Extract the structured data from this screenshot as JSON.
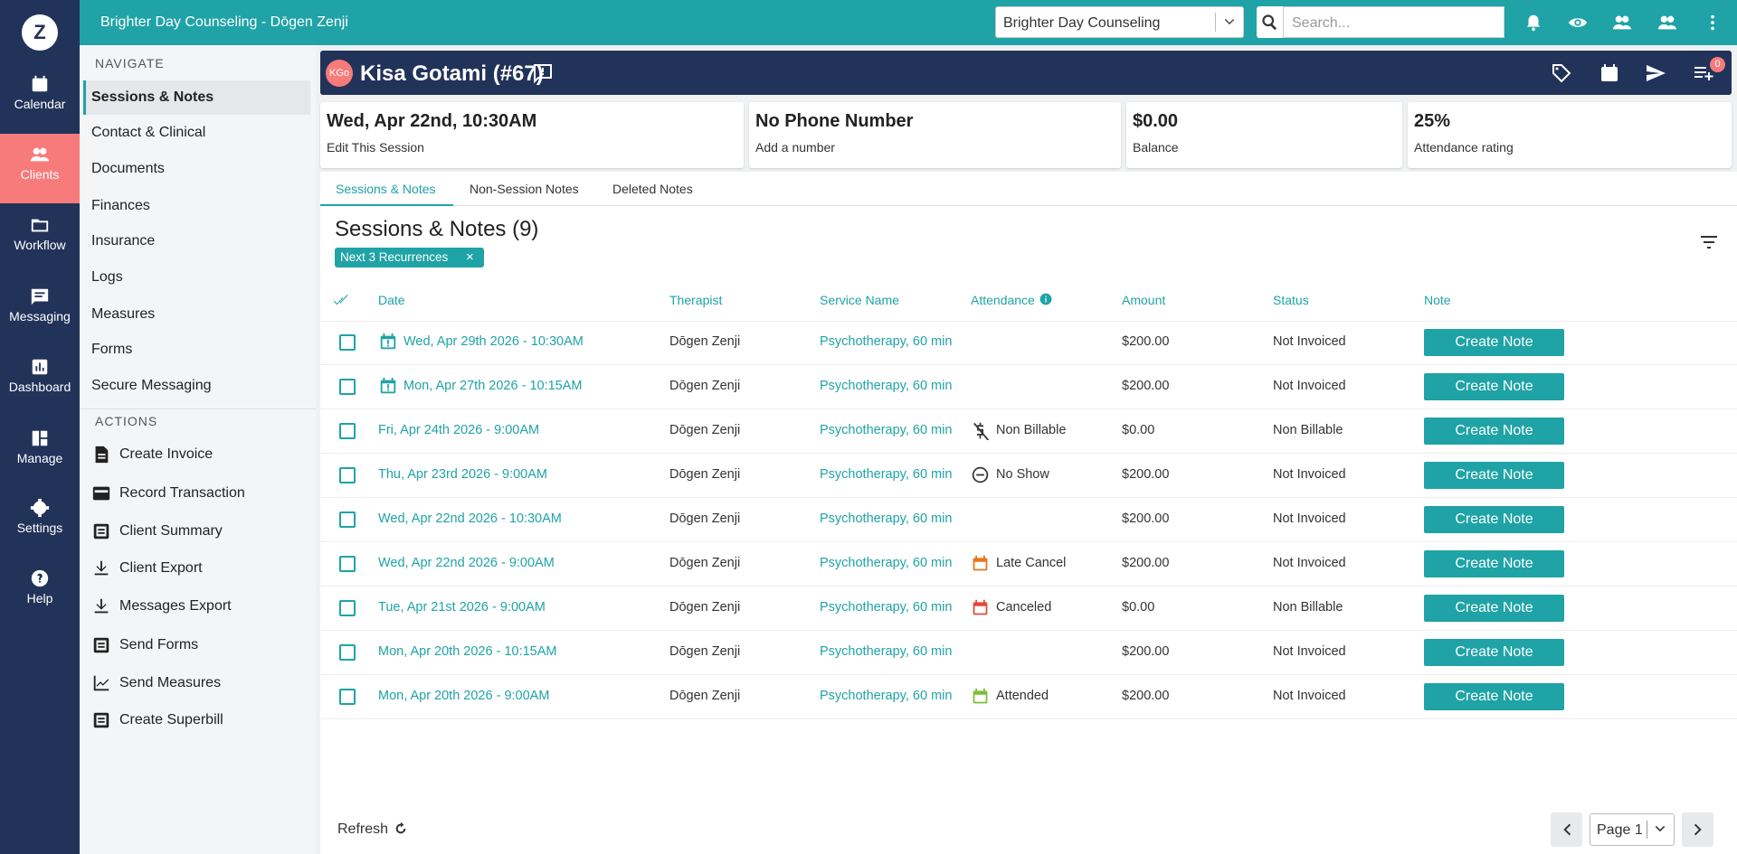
{
  "header": {
    "org_title": "Brighter Day Counseling - Dōgen Zenji",
    "org_select": "Brighter Day Counseling",
    "search_placeholder": "Search..."
  },
  "logo": "Z",
  "main_nav": [
    "Calendar",
    "Clients",
    "Workflow",
    "Messaging",
    "Dashboard",
    "Manage",
    "Settings",
    "Help"
  ],
  "sidebar": {
    "navigate_heading": "NAVIGATE",
    "navigate": [
      "Sessions & Notes",
      "Contact & Clinical",
      "Documents",
      "Finances",
      "Insurance",
      "Logs",
      "Measures",
      "Forms",
      "Secure Messaging"
    ],
    "actions_heading": "ACTIONS",
    "actions": [
      "Create Invoice",
      "Record Transaction",
      "Client Summary",
      "Client Export",
      "Messages Export",
      "Send Forms",
      "Send Measures",
      "Create Superbill"
    ]
  },
  "client": {
    "initials": "KGo",
    "name": "Kisa Gotami (#67)",
    "badge": "0"
  },
  "cards": [
    {
      "title": "Wed, Apr 22nd, 10:30AM",
      "subtitle": "Edit This Session"
    },
    {
      "title": "No Phone Number",
      "subtitle": "Add a number"
    },
    {
      "title": "$0.00",
      "subtitle": "Balance"
    },
    {
      "title": "25%",
      "subtitle": "Attendance rating"
    }
  ],
  "tabs": [
    "Sessions & Notes",
    "Non-Session Notes",
    "Deleted Notes"
  ],
  "section_title": "Sessions & Notes (9)",
  "filter_chip": "Next 3 Recurrences",
  "table": {
    "headers": [
      "Date",
      "Therapist",
      "Service Name",
      "Attendance",
      "Amount",
      "Status",
      "Note"
    ],
    "rows": [
      [
        "Wed, Apr 29th 2026 - 10:30AM",
        "Dōgen Zenji",
        "Psychotherapy, 60 min",
        null,
        "$200.00",
        "Not Invoiced",
        "Create Note"
      ],
      [
        "Mon, Apr 27th 2026 - 10:15AM",
        "Dōgen Zenji",
        "Psychotherapy, 60 min",
        null,
        "$200.00",
        "Not Invoiced",
        "Create Note"
      ],
      [
        "Fri, Apr 24th 2026 - 9:00AM",
        "Dōgen Zenji",
        "Psychotherapy, 60 min",
        "Non Billable",
        "$0.00",
        "Non Billable",
        "Create Note"
      ],
      [
        "Thu, Apr 23rd 2026 - 9:00AM",
        "Dōgen Zenji",
        "Psychotherapy, 60 min",
        "No Show",
        "$200.00",
        "Not Invoiced",
        "Create Note"
      ],
      [
        "Wed, Apr 22nd 2026 - 10:30AM",
        "Dōgen Zenji",
        "Psychotherapy, 60 min",
        null,
        "$200.00",
        "Not Invoiced",
        "Create Note"
      ],
      [
        "Wed, Apr 22nd 2026 - 9:00AM",
        "Dōgen Zenji",
        "Psychotherapy, 60 min",
        "Late Cancel",
        "$200.00",
        "Not Invoiced",
        "Create Note"
      ],
      [
        "Tue, Apr 21st 2026 - 9:00AM",
        "Dōgen Zenji",
        "Psychotherapy, 60 min",
        "Canceled",
        "$0.00",
        "Non Billable",
        "Create Note"
      ],
      [
        "Mon, Apr 20th 2026 - 10:15AM",
        "Dōgen Zenji",
        "Psychotherapy, 60 min",
        null,
        "$200.00",
        "Not Invoiced",
        "Create Note"
      ],
      [
        "Mon, Apr 20th 2026 - 9:00AM",
        "Dōgen Zenji",
        "Psychotherapy, 60 min",
        "Attended",
        "$200.00",
        "Not Invoiced",
        "Create Note"
      ]
    ]
  },
  "footer": {
    "refresh": "Refresh",
    "page": "Page 1"
  }
}
